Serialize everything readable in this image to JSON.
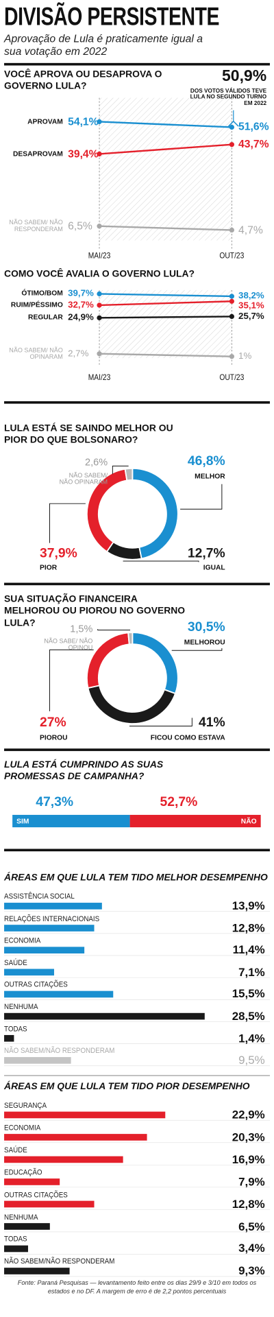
{
  "title": "DIVISÃO PERSISTENTE",
  "subtitle": "Aprovação de Lula é praticamente igual a sua votação em 2022",
  "chart_data": [
    {
      "type": "line",
      "title": "VOCÊ APROVA OU DESAPROVA O GOVERNO LULA?",
      "categories": [
        "MAI/23",
        "OUT/23"
      ],
      "ylim": [
        0,
        65
      ],
      "series": [
        {
          "name": "APROVAM",
          "color": "#1a8fd0",
          "values": [
            54.1,
            51.6
          ],
          "value_labels": [
            "54,1%",
            "51,6%"
          ]
        },
        {
          "name": "DESAPROVAM",
          "color": "#e4202b",
          "values": [
            39.4,
            43.7
          ],
          "value_labels": [
            "39,4%",
            "43,7%"
          ]
        },
        {
          "name": "NÃO SABEM/ NÃO RESPONDERAM",
          "color": "#a8a8a8",
          "values": [
            6.5,
            4.7
          ],
          "value_labels": [
            "6,5%",
            "4,7%"
          ]
        }
      ],
      "annotation": {
        "value": 50.9,
        "label": "50,9%",
        "text": "DOS VOTOS VÁLIDOS TEVE LULA NO SEGUNDO TURNO EM 2022"
      }
    },
    {
      "type": "line",
      "title": "COMO VOCÊ AVALIA O GOVERNO LULA?",
      "categories": [
        "MAI/23",
        "OUT/23"
      ],
      "ylim": [
        0,
        42
      ],
      "series": [
        {
          "name": "ÓTIMO/BOM",
          "color": "#1a8fd0",
          "values": [
            39.7,
            38.2
          ],
          "value_labels": [
            "39,7%",
            "38,2%"
          ]
        },
        {
          "name": "REGULAR",
          "color": "#1a1a1a",
          "values": [
            24.9,
            25.7
          ],
          "value_labels": [
            "24,9%",
            "25,7%"
          ]
        },
        {
          "name": "RUIM/PÉSSIMO",
          "color": "#e4202b",
          "values": [
            32.7,
            35.1
          ],
          "value_labels": [
            "32,7%",
            "35,1%"
          ]
        },
        {
          "name": "NÃO SABEM/ NÃO OPINARAM",
          "color": "#a8a8a8",
          "values": [
            2.7,
            1
          ],
          "value_labels": [
            "2,7%",
            "1%"
          ]
        }
      ]
    },
    {
      "type": "donut",
      "title": "LULA ESTÁ SE SAINDO MELHOR OU PIOR DO QUE BOLSONARO?",
      "categories": [
        "MELHOR",
        "IGUAL",
        "PIOR",
        "NÃO SABEM/ NÃO OPINARAM"
      ],
      "values": [
        46.8,
        12.7,
        37.9,
        2.6
      ],
      "value_labels": [
        "46,8%",
        "12,7%",
        "37,9%",
        "2,6%"
      ],
      "colors": [
        "#1a8fd0",
        "#1a1a1a",
        "#e4202b",
        "#b8b8b8"
      ]
    },
    {
      "type": "donut",
      "title": "SUA SITUAÇÃO FINANCEIRA MELHOROU OU PIOROU NO GOVERNO LULA?",
      "categories": [
        "MELHOROU",
        "FICOU COMO ESTAVA",
        "PIOROU",
        "NÃO SABE/ NÃO OPINOU"
      ],
      "values": [
        30.5,
        41,
        27,
        1.5
      ],
      "value_labels": [
        "30,5%",
        "41%",
        "27%",
        "1,5%"
      ],
      "colors": [
        "#1a8fd0",
        "#1a1a1a",
        "#e4202b",
        "#b8b8b8"
      ]
    },
    {
      "type": "stacked-bar",
      "title": "LULA ESTÁ CUMPRINDO AS SUAS PROMESSAS DE CAMPANHA?",
      "xlim": [
        0,
        100
      ],
      "categories": [
        "SIM",
        "NÃO"
      ],
      "values": [
        47.3,
        52.7
      ],
      "value_labels": [
        "47,3%",
        "52,7%"
      ],
      "colors": [
        "#1a8fd0",
        "#e4202b"
      ]
    },
    {
      "type": "hbar",
      "title": "ÁREAS EM QUE LULA TEM TIDO MELHOR DESEMPENHO",
      "xlim": [
        0,
        35
      ],
      "categories": [
        "ASSISTÊNCIA SOCIAL",
        "RELAÇÕES INTERNACIONAIS",
        "ECONOMIA",
        "SAÚDE",
        "OUTRAS CITAÇÕES",
        "NENHUMA",
        "TODAS",
        "NÃO SABEM/NÃO RESPONDERAM"
      ],
      "values": [
        13.9,
        12.8,
        11.4,
        7.1,
        15.5,
        28.5,
        1.4,
        9.5
      ],
      "value_labels": [
        "13,9%",
        "12,8%",
        "11,4%",
        "7,1%",
        "15,5%",
        "28,5%",
        "1,4%",
        "9,5%"
      ],
      "colors": [
        "#1a8fd0",
        "#1a8fd0",
        "#1a8fd0",
        "#1a8fd0",
        "#1a8fd0",
        "#1a1a1a",
        "#1a1a1a",
        "#c4c4c4"
      ]
    },
    {
      "type": "hbar",
      "title": "ÁREAS EM QUE LULA TEM TIDO PIOR DESEMPENHO",
      "xlim": [
        0,
        35
      ],
      "categories": [
        "SEGURANÇA",
        "ECONOMIA",
        "SAÚDE",
        "EDUCAÇÃO",
        "OUTRAS CITAÇÕES",
        "NENHUMA",
        "TODAS",
        "NÃO SABEM/NÃO RESPONDERAM"
      ],
      "values": [
        22.9,
        20.3,
        16.9,
        7.9,
        12.8,
        6.5,
        3.4,
        9.3
      ],
      "value_labels": [
        "22,9%",
        "20,3%",
        "16,9%",
        "7,9%",
        "12,8%",
        "6,5%",
        "3,4%",
        "9,3%"
      ],
      "colors": [
        "#e4202b",
        "#e4202b",
        "#e4202b",
        "#e4202b",
        "#e4202b",
        "#1a1a1a",
        "#1a1a1a",
        "#1a1a1a"
      ]
    }
  ],
  "source": "Fonte: Paraná Pesquisas — levantamento feito entre os dias 29/9 e 3/10 em todos os estados e no DF. A margem de erro é de 2,2 pontos percentuais"
}
